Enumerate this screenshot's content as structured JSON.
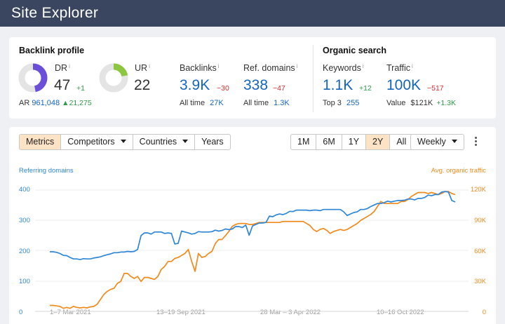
{
  "header": {
    "title": "Site Explorer"
  },
  "backlink_profile": {
    "title": "Backlink profile",
    "dr": {
      "label": "DR",
      "info": "i",
      "value": "47",
      "delta": "+1",
      "fill": 0.47
    },
    "ur": {
      "label": "UR",
      "info": "i",
      "value": "22",
      "fill": 0.22
    },
    "ar": {
      "label": "AR",
      "value": "961,048",
      "delta": "▲21,275"
    },
    "backlinks": {
      "label": "Backlinks",
      "info": "i",
      "value": "3.9K",
      "delta": "−30",
      "sub_label": "All time",
      "sub_value": "27K"
    },
    "ref_domains": {
      "label": "Ref. domains",
      "info": "i",
      "value": "338",
      "delta": "−47",
      "sub_label": "All time",
      "sub_value": "1.3K"
    }
  },
  "organic_search": {
    "title": "Organic search",
    "keywords": {
      "label": "Keywords",
      "info": "i",
      "value": "1.1K",
      "delta": "+12",
      "sub_label": "Top 3",
      "sub_value": "255"
    },
    "traffic": {
      "label": "Traffic",
      "info": "i",
      "value": "100K",
      "delta": "−517",
      "sub_label": "Value",
      "sub_value": "$121K",
      "sub_delta": "+1.3K"
    }
  },
  "toolbar": {
    "tabs": [
      "Metrics",
      "Competitors",
      "Countries",
      "Years"
    ],
    "active_tab": "Metrics",
    "ranges": [
      "1M",
      "6M",
      "1Y",
      "2Y",
      "All"
    ],
    "active_range": "2Y",
    "interval": "Weekly"
  },
  "colors": {
    "ref_domains": "#2f86d6",
    "traffic": "#f08a1c",
    "dr_ring": "#6b4fd8",
    "ur_ring": "#8dc63f",
    "active_bg": "#fde3c5"
  },
  "chart_data": {
    "type": "line",
    "left_axis_title": "Referring domains",
    "right_axis_title": "Avg. organic traffic",
    "left_ticks": [
      "400",
      "300",
      "200",
      "100",
      "0"
    ],
    "right_ticks": [
      "120K",
      "90K",
      "60K",
      "30K",
      "0"
    ],
    "x_ticks": [
      "1–7 Mar 2021",
      "13–19 Sep 2021",
      "28 Mar – 3 Apr 2022",
      "10–16 Oct 2022"
    ],
    "ylim_left": [
      0,
      440
    ],
    "ylim_right": [
      0,
      132000
    ],
    "grid": true,
    "series": [
      {
        "name": "Referring domains",
        "axis": "left",
        "values": [
          199,
          199,
          197,
          193,
          187,
          186,
          180,
          175,
          175,
          173,
          176,
          175,
          175,
          178,
          180,
          182,
          186,
          189,
          192,
          196,
          196,
          198,
          198,
          200,
          199,
          200,
          207,
          253,
          262,
          262,
          258,
          265,
          265,
          265,
          260,
          262,
          260,
          225,
          227,
          268,
          265,
          262,
          258,
          260,
          266,
          265,
          265,
          265,
          266,
          271,
          268,
          270,
          275,
          273,
          275,
          283,
          283,
          280,
          288,
          254,
          285,
          290,
          295,
          295,
          297,
          318,
          316,
          322,
          325,
          323,
          327,
          334,
          333,
          338,
          338,
          338,
          338,
          336,
          338,
          338,
          336,
          340,
          340,
          340,
          340,
          340,
          340,
          332,
          320,
          325,
          330,
          332,
          340,
          340,
          343,
          350,
          355,
          360,
          360,
          363,
          368,
          365,
          368,
          370,
          370,
          371,
          375,
          375,
          372,
          377,
          377,
          380,
          388,
          386,
          390,
          390,
          398,
          400,
          398,
          370,
          365
        ]
      },
      {
        "name": "Avg. organic traffic",
        "axis": "right",
        "values": [
          6000,
          6000,
          5500,
          5000,
          3000,
          4000,
          3000,
          5000,
          4000,
          3500,
          4000,
          3500,
          4500,
          5000,
          7000,
          12000,
          17000,
          20000,
          22000,
          23000,
          28000,
          30000,
          38000,
          38000,
          35000,
          33000,
          35000,
          30000,
          34000,
          34000,
          33000,
          32000,
          35000,
          42000,
          45000,
          50000,
          50000,
          53000,
          54000,
          56000,
          58000,
          62000,
          50000,
          40000,
          58000,
          54000,
          55000,
          58000,
          60000,
          68000,
          72000,
          72000,
          76000,
          80000,
          85000,
          87000,
          88000,
          88000,
          88000,
          87000,
          87000,
          88000,
          89000,
          89000,
          89000,
          89000,
          89000,
          89000,
          89000,
          90000,
          90000,
          90000,
          90000,
          90000,
          90000,
          90000,
          88000,
          86000,
          82000,
          80000,
          82000,
          83000,
          81000,
          78000,
          80000,
          81000,
          82000,
          81000,
          82000,
          84000,
          86000,
          88000,
          91000,
          93000,
          95000,
          97000,
          100000,
          105000,
          110000,
          108000,
          108000,
          108000,
          108000,
          108000,
          110000,
          110000,
          112000,
          115000,
          117000,
          119000,
          119000,
          119000,
          118000,
          119000,
          118000,
          117000,
          118000,
          120000,
          120000,
          118000,
          117000
        ]
      }
    ]
  }
}
